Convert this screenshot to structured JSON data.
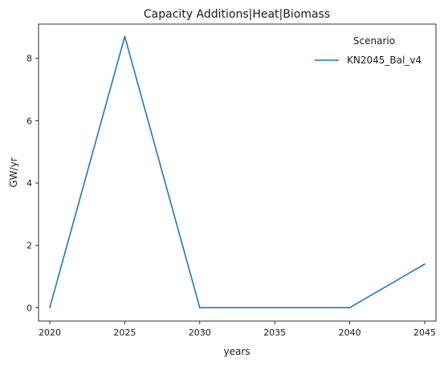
{
  "chart_data": {
    "type": "line",
    "title": "Capacity Additions|Heat|Biomass",
    "xlabel": "years",
    "ylabel": "GW/yr",
    "x": [
      2020,
      2025,
      2030,
      2035,
      2040,
      2045
    ],
    "xticks": [
      "2020",
      "2025",
      "2030",
      "2035",
      "2040",
      "2045"
    ],
    "yticks": [
      "0",
      "2",
      "4",
      "6",
      "8"
    ],
    "xlim": [
      2019.25,
      2045.75
    ],
    "ylim": [
      -0.43,
      9.1
    ],
    "grid": false,
    "legend": {
      "title": "Scenario",
      "placement": "top-right"
    },
    "series": [
      {
        "name": "KN2045_Bal_v4",
        "color": "#1f77b4",
        "values": [
          0,
          8.7,
          0,
          0,
          0,
          1.4
        ]
      }
    ]
  }
}
